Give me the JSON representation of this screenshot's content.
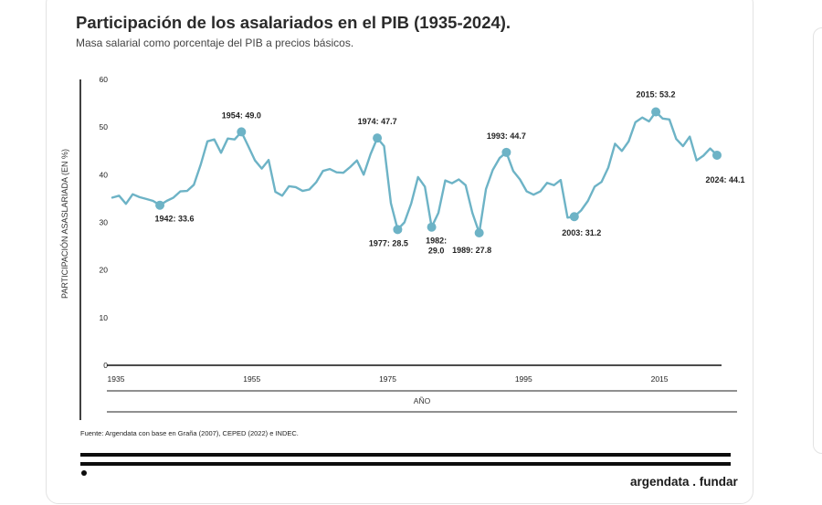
{
  "header": {
    "title": "Participación de los asalariados en el PIB (1935-2024).",
    "subtitle": "Masa salarial como porcentaje del PIB a precios básicos."
  },
  "footer": {
    "source": "Fuente: Argendata con base en Graña (2007), CEPED (2022) e INDEC.",
    "brand": "argendata . fundar"
  },
  "edge_fragment": ")",
  "colors": {
    "series": "#6db3c6",
    "text": "#222222",
    "axis": "#111111"
  },
  "chart_data": {
    "type": "line",
    "title": "Participación de los asalariados en el PIB (1935-2024).",
    "xlabel": "AÑO",
    "ylabel": "PARTICIPACIÓN ASASLARIADA (EN %)",
    "xlim": [
      1935,
      2024
    ],
    "ylim": [
      0,
      60
    ],
    "x_ticks": [
      "1935",
      "1955",
      "1975",
      "1995",
      "2015"
    ],
    "y_ticks": [
      "0",
      "10",
      "20",
      "30",
      "40",
      "50",
      "60"
    ],
    "series": [
      {
        "name": "Participación asalariada",
        "x": [
          1935,
          1936,
          1937,
          1938,
          1939,
          1940,
          1941,
          1942,
          1943,
          1944,
          1945,
          1946,
          1947,
          1948,
          1949,
          1950,
          1951,
          1952,
          1953,
          1954,
          1955,
          1956,
          1957,
          1958,
          1959,
          1960,
          1961,
          1962,
          1963,
          1964,
          1965,
          1966,
          1967,
          1968,
          1969,
          1970,
          1971,
          1972,
          1973,
          1974,
          1975,
          1976,
          1977,
          1978,
          1979,
          1980,
          1981,
          1982,
          1983,
          1984,
          1985,
          1986,
          1987,
          1988,
          1989,
          1990,
          1991,
          1992,
          1993,
          1994,
          1995,
          1996,
          1997,
          1998,
          1999,
          2000,
          2001,
          2002,
          2003,
          2004,
          2005,
          2006,
          2007,
          2008,
          2009,
          2010,
          2011,
          2012,
          2013,
          2014,
          2015,
          2016,
          2017,
          2018,
          2019,
          2020,
          2021,
          2022,
          2023,
          2024
        ],
        "values": [
          35.2,
          35.6,
          33.9,
          35.9,
          35.3,
          34.9,
          34.5,
          33.6,
          34.5,
          35.2,
          36.5,
          36.6,
          37.9,
          42.1,
          47.0,
          47.4,
          44.6,
          47.6,
          47.4,
          49.0,
          46.0,
          43.0,
          41.3,
          43.1,
          36.4,
          35.6,
          37.6,
          37.4,
          36.6,
          36.9,
          38.4,
          40.8,
          41.2,
          40.5,
          40.4,
          41.6,
          43.0,
          40.0,
          44.3,
          47.7,
          46.0,
          34.0,
          28.5,
          30.0,
          34.0,
          39.5,
          37.5,
          29.0,
          32.0,
          38.8,
          38.2,
          39.0,
          37.8,
          32.0,
          27.8,
          37.0,
          41.0,
          43.5,
          44.7,
          40.8,
          39.0,
          36.5,
          35.8,
          36.5,
          38.3,
          37.8,
          38.9,
          31.0,
          31.2,
          32.5,
          34.5,
          37.5,
          38.5,
          41.5,
          46.5,
          45.0,
          47.0,
          51.0,
          52.0,
          51.2,
          53.2,
          51.8,
          51.6,
          47.5,
          46.0,
          48.0,
          43.0,
          44.0,
          45.5,
          44.1
        ]
      }
    ],
    "annotations": [
      {
        "year": 1942,
        "value": 33.6,
        "label": "1942: 33.6"
      },
      {
        "year": 1954,
        "value": 49.0,
        "label": "1954: 49.0"
      },
      {
        "year": 1974,
        "value": 47.7,
        "label": "1974: 47.7"
      },
      {
        "year": 1977,
        "value": 28.5,
        "label": "1977: 28.5"
      },
      {
        "year": 1982,
        "value": 29.0,
        "label": "1982: 29.0"
      },
      {
        "year": 1989,
        "value": 27.8,
        "label": "1989: 27.8"
      },
      {
        "year": 1993,
        "value": 44.7,
        "label": "1993: 44.7"
      },
      {
        "year": 2003,
        "value": 31.2,
        "label": "2003: 31.2"
      },
      {
        "year": 2015,
        "value": 53.2,
        "label": "2015: 53.2"
      },
      {
        "year": 2024,
        "value": 44.1,
        "label": "2024: 44.1"
      }
    ]
  }
}
